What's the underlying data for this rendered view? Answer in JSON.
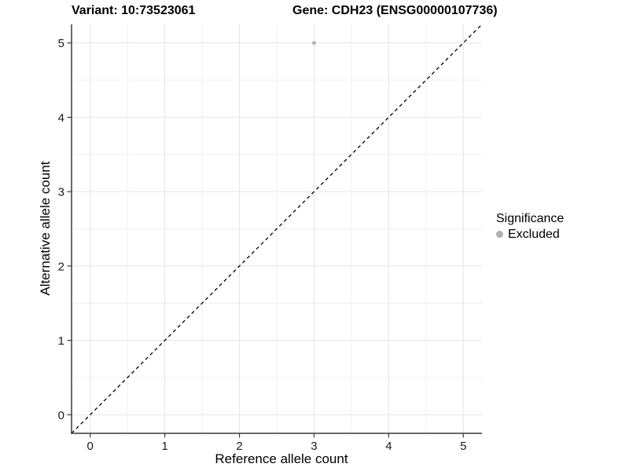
{
  "titles": {
    "variant": "Variant: 10:73523061",
    "gene": "Gene: CDH23 (ENSG00000107736)"
  },
  "chart_data": {
    "type": "scatter",
    "title_left": "Variant: 10:73523061",
    "title_right": "Gene: CDH23 (ENSG00000107736)",
    "xlabel": "Reference allele count",
    "ylabel": "Alternative allele count",
    "xlim": [
      -0.25,
      5.25
    ],
    "ylim": [
      -0.25,
      5.25
    ],
    "x_ticks": [
      0,
      1,
      2,
      3,
      4,
      5
    ],
    "y_ticks": [
      0,
      1,
      2,
      3,
      4,
      5
    ],
    "x_minor_ticks": [
      0.5,
      1.5,
      2.5,
      3.5,
      4.5
    ],
    "y_minor_ticks": [
      0.5,
      1.5,
      2.5,
      3.5,
      4.5
    ],
    "grid": true,
    "points": [
      {
        "x": 3,
        "y": 5,
        "series": "Excluded"
      }
    ],
    "abline": {
      "slope": 1,
      "intercept": 0,
      "style": "dashed"
    },
    "legend": {
      "title": "Significance",
      "position": "right",
      "items": [
        {
          "label": "Excluded",
          "color": "#b0b0b0"
        }
      ]
    },
    "colors": {
      "point": "#b5b5b5",
      "grid_major": "#e4e4e4",
      "grid_minor": "#efefef",
      "axis_line": "#383838",
      "tick_text": "#1a1a1a",
      "abline": "#000000",
      "background": "#ffffff"
    }
  }
}
